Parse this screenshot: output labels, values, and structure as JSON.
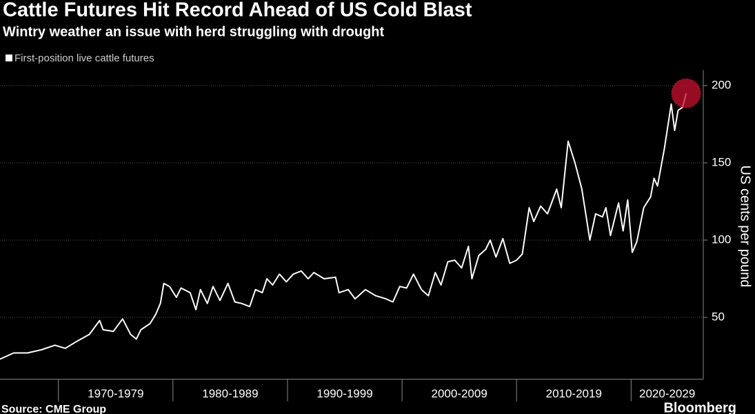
{
  "chart_data": {
    "type": "line",
    "title": "Cattle Futures Hit Record Ahead of US Cold Blast",
    "subtitle": "Wintry weather an issue with herd struggling with drought",
    "y_label": "US cents per pound",
    "source": "Source: CME Group",
    "logo": "Bloomberg",
    "legend": "top-left",
    "grid": true,
    "xlim": [
      1964.9,
      2026.3
    ],
    "xticks": [
      1970,
      1980,
      1990,
      2000,
      2010,
      2020
    ],
    "xbands": [
      "1970-1979",
      "1980-1989",
      "1990-1999",
      "2000-2009",
      "2010-2019",
      "2020-2029"
    ],
    "ylim": [
      10,
      210
    ],
    "yticks": [
      50,
      100,
      150,
      200
    ],
    "highlight_color": "#c8102e",
    "x": [
      1964.9,
      1966.1,
      1967.3,
      1968.5,
      1969.7,
      1970.6,
      1971.5,
      1972.7,
      1973.6,
      1973.9,
      1974.8,
      1975.6,
      1976.3,
      1976.8,
      1977.2,
      1978.0,
      1978.5,
      1978.9,
      1979.2,
      1979.7,
      1980.3,
      1980.7,
      1981.5,
      1982.0,
      1982.4,
      1983.0,
      1983.5,
      1984.1,
      1984.8,
      1985.4,
      1986.0,
      1986.7,
      1987.2,
      1987.8,
      1988.2,
      1988.7,
      1989.3,
      1989.9,
      1990.5,
      1991.2,
      1991.8,
      1992.3,
      1993.2,
      1994.2,
      1994.5,
      1995.3,
      1995.9,
      1996.8,
      1997.7,
      1998.6,
      1999.2,
      1999.8,
      2000.4,
      2001.0,
      2001.7,
      2002.3,
      2002.9,
      2003.4,
      2004.0,
      2004.6,
      2005.2,
      2005.8,
      2006.1,
      2006.7,
      2007.3,
      2007.7,
      2008.2,
      2008.8,
      2009.4,
      2010.0,
      2010.5,
      2011.1,
      2011.5,
      2012.1,
      2012.7,
      2013.5,
      2013.9,
      2014.5,
      2015.1,
      2015.7,
      2016.4,
      2016.9,
      2017.5,
      2017.8,
      2018.2,
      2018.9,
      2019.3,
      2019.7,
      2020.1,
      2020.5,
      2021.1,
      2021.7,
      2022.0,
      2022.3,
      2022.9,
      2023.5,
      2023.8,
      2024.1,
      2024.5,
      2024.8
    ],
    "series": [
      {
        "name": "First-position live cattle futures",
        "color": "#ffffff",
        "values": [
          23,
          27,
          27,
          29,
          32,
          30,
          34,
          39,
          48,
          42,
          41,
          49,
          39,
          36,
          42,
          46,
          52,
          59,
          72,
          70,
          63,
          69,
          66,
          55,
          68,
          59,
          70,
          61,
          72,
          60,
          59,
          57,
          68,
          66,
          75,
          71,
          78,
          73,
          78,
          80,
          75,
          79,
          75,
          76,
          66,
          68,
          62,
          68,
          64,
          62,
          60,
          70,
          69,
          78,
          68,
          64,
          79,
          71,
          86,
          87,
          82,
          96,
          75,
          90,
          94,
          100,
          89,
          101,
          85,
          87,
          91,
          121,
          112,
          122,
          117,
          133,
          121,
          164,
          150,
          133,
          100,
          117,
          115,
          121,
          103,
          124,
          106,
          126,
          92,
          99,
          121,
          128,
          140,
          135,
          159,
          188,
          171,
          184,
          186,
          195
        ]
      }
    ]
  }
}
